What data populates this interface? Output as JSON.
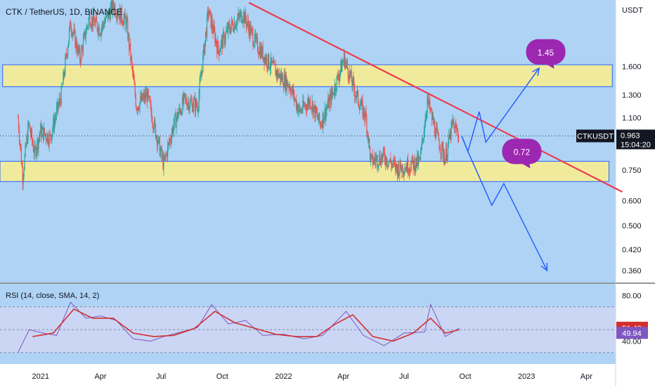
{
  "header": {
    "symbol_title": "CTK / TetherUS, 1D, BINANCE"
  },
  "price_axis": {
    "currency": "USDT",
    "ticks": [
      "1.600",
      "1.300",
      "1.100",
      "0.750",
      "0.600",
      "0.500",
      "0.420",
      "0.360"
    ],
    "tick_values": [
      1.6,
      1.3,
      1.1,
      0.75,
      0.6,
      0.5,
      0.42,
      0.36
    ],
    "symbol_badge": "CTKUSDT",
    "last_price": "0.963",
    "countdown": "15:04:20"
  },
  "time_axis": {
    "labels": [
      "2021",
      "Apr",
      "Jul",
      "Oct",
      "2022",
      "Apr",
      "Jul",
      "Oct",
      "2023",
      "Apr"
    ]
  },
  "annotations": {
    "target_high": "1.45",
    "target_low": "0.72"
  },
  "rsi": {
    "title": "RSI (14, close, SMA, 14, 2)",
    "ticks": [
      "80.00",
      "40.00"
    ],
    "tick_values": [
      80,
      40
    ],
    "rsi_value": "51.40",
    "sma_value": "49.94",
    "colors": {
      "rsi": "#7e57c2",
      "sma": "#d32f2f",
      "band": "#e1d8f2"
    }
  },
  "colors": {
    "background": "#aed3f5",
    "zone_fill": "#f0eb9c",
    "zone_border": "#2962ff",
    "trendline": "#ef3b4f",
    "projection": "#2962ff",
    "badge": "#9c27b0",
    "candle_up": "#26a69a",
    "candle_down": "#ef5350"
  },
  "chart_data": {
    "type": "candlestick",
    "title": "CTK / TetherUS, 1D, BINANCE",
    "ylabel": "USDT",
    "y_scale": "log",
    "ylim": [
      0.33,
      2.6
    ],
    "x_range": [
      "2020-11-01",
      "2023-05-15"
    ],
    "series": [
      {
        "name": "Daily closes (approx.)",
        "values": [
          {
            "x": "2020-11-28",
            "y": 1.1
          },
          {
            "x": "2020-12-05",
            "y": 0.72
          },
          {
            "x": "2020-12-14",
            "y": 1.05
          },
          {
            "x": "2020-12-23",
            "y": 0.85
          },
          {
            "x": "2021-01-01",
            "y": 1.0
          },
          {
            "x": "2021-01-15",
            "y": 0.95
          },
          {
            "x": "2021-02-01",
            "y": 1.3
          },
          {
            "x": "2021-02-15",
            "y": 2.2
          },
          {
            "x": "2021-03-01",
            "y": 1.7
          },
          {
            "x": "2021-03-15",
            "y": 2.3
          },
          {
            "x": "2021-04-01",
            "y": 2.1
          },
          {
            "x": "2021-04-20",
            "y": 2.5
          },
          {
            "x": "2021-05-10",
            "y": 2.2
          },
          {
            "x": "2021-05-25",
            "y": 1.2
          },
          {
            "x": "2021-06-10",
            "y": 1.3
          },
          {
            "x": "2021-06-25",
            "y": 0.95
          },
          {
            "x": "2021-07-05",
            "y": 0.78
          },
          {
            "x": "2021-07-20",
            "y": 1.05
          },
          {
            "x": "2021-08-05",
            "y": 1.25
          },
          {
            "x": "2021-08-25",
            "y": 1.2
          },
          {
            "x": "2021-09-10",
            "y": 2.4
          },
          {
            "x": "2021-09-25",
            "y": 1.8
          },
          {
            "x": "2021-10-10",
            "y": 2.1
          },
          {
            "x": "2021-11-01",
            "y": 2.35
          },
          {
            "x": "2021-11-20",
            "y": 1.9
          },
          {
            "x": "2021-12-05",
            "y": 1.7
          },
          {
            "x": "2021-12-25",
            "y": 1.5
          },
          {
            "x": "2022-01-10",
            "y": 1.4
          },
          {
            "x": "2022-01-25",
            "y": 1.15
          },
          {
            "x": "2022-02-10",
            "y": 1.25
          },
          {
            "x": "2022-02-25",
            "y": 1.05
          },
          {
            "x": "2022-03-15",
            "y": 1.3
          },
          {
            "x": "2022-04-02",
            "y": 1.7
          },
          {
            "x": "2022-04-20",
            "y": 1.3
          },
          {
            "x": "2022-05-05",
            "y": 1.1
          },
          {
            "x": "2022-05-12",
            "y": 0.8
          },
          {
            "x": "2022-06-01",
            "y": 0.83
          },
          {
            "x": "2022-06-20",
            "y": 0.76
          },
          {
            "x": "2022-07-10",
            "y": 0.78
          },
          {
            "x": "2022-07-25",
            "y": 0.8
          },
          {
            "x": "2022-08-05",
            "y": 1.25
          },
          {
            "x": "2022-08-20",
            "y": 0.95
          },
          {
            "x": "2022-09-01",
            "y": 0.82
          },
          {
            "x": "2022-09-12",
            "y": 1.05
          },
          {
            "x": "2022-09-22",
            "y": 0.963
          }
        ]
      }
    ],
    "support_zones": [
      {
        "name": "upper",
        "from_date": "2020-11-05",
        "to_date": "2023-05-10",
        "low": 1.38,
        "high": 1.62
      },
      {
        "name": "lower",
        "from_date": "2020-11-01",
        "to_date": "2023-05-05",
        "low": 0.69,
        "high": 0.8
      }
    ],
    "trendline": {
      "start": {
        "x": "2021-11-10",
        "y": 2.55
      },
      "end": {
        "x": "2023-05-25",
        "y": 0.64
      }
    },
    "projection_up": [
      {
        "x": "2022-09-26",
        "y": 0.96
      },
      {
        "x": "2022-10-05",
        "y": 0.86
      },
      {
        "x": "2022-10-22",
        "y": 1.15
      },
      {
        "x": "2022-11-01",
        "y": 0.92
      },
      {
        "x": "2023-01-20",
        "y": 1.58
      }
    ],
    "projection_down": [
      {
        "x": "2022-09-26",
        "y": 0.96
      },
      {
        "x": "2022-10-05",
        "y": 0.86
      },
      {
        "x": "2022-11-10",
        "y": 0.58
      },
      {
        "x": "2022-11-28",
        "y": 0.68
      },
      {
        "x": "2023-02-01",
        "y": 0.36
      }
    ],
    "callouts": [
      {
        "label": "1.45",
        "x": "2023-01-30",
        "y": 1.78
      },
      {
        "label": "0.72",
        "x": "2022-12-25",
        "y": 0.86
      }
    ],
    "x_ticks": [
      {
        "label": "2021",
        "date": "2021-01-01"
      },
      {
        "label": "Apr",
        "date": "2021-04-01"
      },
      {
        "label": "Jul",
        "date": "2021-07-01"
      },
      {
        "label": "Oct",
        "date": "2021-10-01"
      },
      {
        "label": "2022",
        "date": "2022-01-01"
      },
      {
        "label": "Apr",
        "date": "2022-04-01"
      },
      {
        "label": "Jul",
        "date": "2022-07-01"
      },
      {
        "label": "Oct",
        "date": "2022-10-01"
      },
      {
        "label": "2023",
        "date": "2023-01-01"
      },
      {
        "label": "Apr",
        "date": "2023-04-01"
      }
    ],
    "rsi_panel": {
      "ylim": [
        20,
        90
      ],
      "band": [
        30,
        70
      ],
      "rsi_series": [
        {
          "x": "2020-11-28",
          "y": 30
        },
        {
          "x": "2020-12-15",
          "y": 50
        },
        {
          "x": "2021-01-05",
          "y": 47
        },
        {
          "x": "2021-01-25",
          "y": 45
        },
        {
          "x": "2021-02-15",
          "y": 74
        },
        {
          "x": "2021-03-10",
          "y": 60
        },
        {
          "x": "2021-04-01",
          "y": 62
        },
        {
          "x": "2021-04-25",
          "y": 58
        },
        {
          "x": "2021-05-20",
          "y": 42
        },
        {
          "x": "2021-06-15",
          "y": 40
        },
        {
          "x": "2021-07-05",
          "y": 44
        },
        {
          "x": "2021-08-01",
          "y": 48
        },
        {
          "x": "2021-08-25",
          "y": 52
        },
        {
          "x": "2021-09-15",
          "y": 72
        },
        {
          "x": "2021-10-10",
          "y": 55
        },
        {
          "x": "2021-11-05",
          "y": 58
        },
        {
          "x": "2021-12-01",
          "y": 45
        },
        {
          "x": "2022-01-01",
          "y": 46
        },
        {
          "x": "2022-02-01",
          "y": 42
        },
        {
          "x": "2022-03-01",
          "y": 45
        },
        {
          "x": "2022-04-05",
          "y": 66
        },
        {
          "x": "2022-05-01",
          "y": 45
        },
        {
          "x": "2022-06-01",
          "y": 36
        },
        {
          "x": "2022-07-01",
          "y": 47
        },
        {
          "x": "2022-08-01",
          "y": 48
        },
        {
          "x": "2022-08-10",
          "y": 72
        },
        {
          "x": "2022-09-01",
          "y": 44
        },
        {
          "x": "2022-09-22",
          "y": 51.4
        }
      ],
      "sma_series": [
        {
          "x": "2020-12-20",
          "y": 44
        },
        {
          "x": "2021-01-20",
          "y": 47
        },
        {
          "x": "2021-02-20",
          "y": 68
        },
        {
          "x": "2021-03-20",
          "y": 60
        },
        {
          "x": "2021-04-20",
          "y": 60
        },
        {
          "x": "2021-05-20",
          "y": 47
        },
        {
          "x": "2021-06-20",
          "y": 44
        },
        {
          "x": "2021-07-20",
          "y": 45
        },
        {
          "x": "2021-08-20",
          "y": 51
        },
        {
          "x": "2021-09-20",
          "y": 66
        },
        {
          "x": "2021-10-20",
          "y": 56
        },
        {
          "x": "2021-11-20",
          "y": 51
        },
        {
          "x": "2021-12-20",
          "y": 46
        },
        {
          "x": "2022-01-20",
          "y": 44
        },
        {
          "x": "2022-02-20",
          "y": 44
        },
        {
          "x": "2022-03-20",
          "y": 55
        },
        {
          "x": "2022-04-15",
          "y": 63
        },
        {
          "x": "2022-05-15",
          "y": 44
        },
        {
          "x": "2022-06-15",
          "y": 40
        },
        {
          "x": "2022-07-15",
          "y": 47
        },
        {
          "x": "2022-08-10",
          "y": 60
        },
        {
          "x": "2022-09-01",
          "y": 47
        },
        {
          "x": "2022-09-22",
          "y": 49.94
        }
      ]
    }
  }
}
